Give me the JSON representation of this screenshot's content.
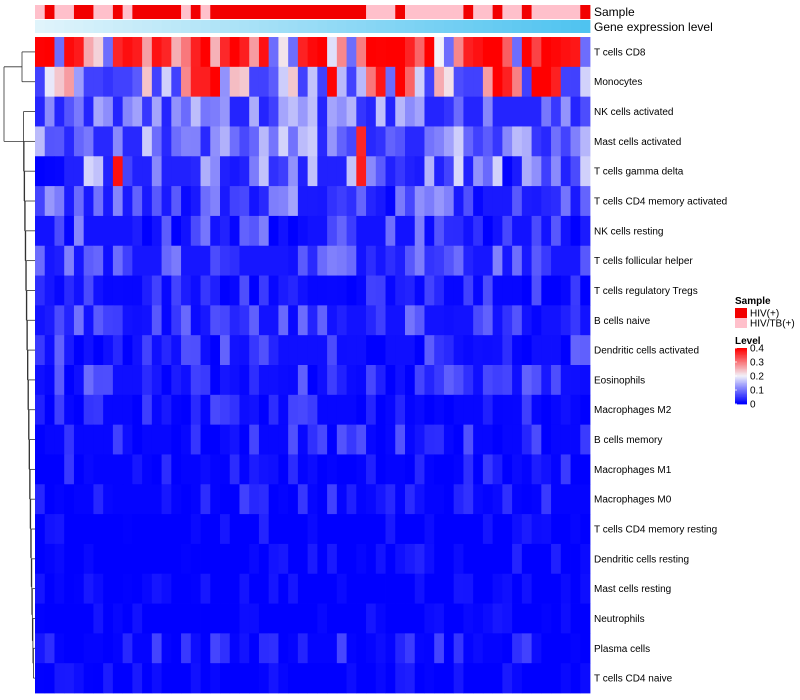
{
  "chart_data": {
    "type": "heatmap",
    "annotation_titles": [
      "Sample",
      "Gene expression level"
    ],
    "rows": [
      "T cells CD8",
      "Monocytes",
      "NK cells activated",
      "Mast cells activated",
      "T cells gamma delta",
      "T cells CD4 memory activated",
      "NK cells resting",
      "T cells follicular helper",
      "T cells regulatory  Tregs",
      "B cells naive",
      "Dendritic cells activated",
      "Eosinophils",
      "Macrophages M2",
      "B cells memory",
      "Macrophages M1",
      "Macrophages M0",
      "T cells CD4 memory resting",
      "Dendritic cells resting",
      "Mast cells resting",
      "Neutrophils",
      "Plasma cells",
      "T cells CD4 naive"
    ],
    "sample_groups": [
      "HIV/TB(+)",
      "HIV(+)",
      "HIV/TB(+)",
      "HIV/TB(+)",
      "HIV(+)",
      "HIV(+)",
      "HIV/TB(+)",
      "HIV/TB(+)",
      "HIV(+)",
      "HIV/TB(+)",
      "HIV(+)",
      "HIV(+)",
      "HIV(+)",
      "HIV(+)",
      "HIV(+)",
      "HIV/TB(+)",
      "HIV(+)",
      "HIV/TB(+)",
      "HIV(+)",
      "HIV(+)",
      "HIV(+)",
      "HIV(+)",
      "HIV(+)",
      "HIV(+)",
      "HIV(+)",
      "HIV(+)",
      "HIV(+)",
      "HIV(+)",
      "HIV(+)",
      "HIV(+)",
      "HIV(+)",
      "HIV(+)",
      "HIV(+)",
      "HIV(+)",
      "HIV/TB(+)",
      "HIV/TB(+)",
      "HIV/TB(+)",
      "HIV(+)",
      "HIV/TB(+)",
      "HIV/TB(+)",
      "HIV/TB(+)",
      "HIV/TB(+)",
      "HIV/TB(+)",
      "HIV/TB(+)",
      "HIV(+)",
      "HIV/TB(+)",
      "HIV/TB(+)",
      "HIV(+)",
      "HIV/TB(+)",
      "HIV/TB(+)",
      "HIV(+)",
      "HIV/TB(+)",
      "HIV/TB(+)",
      "HIV/TB(+)",
      "HIV/TB(+)",
      "HIV/TB(+)",
      "HIV(+)"
    ],
    "expression_level": {
      "min": 0,
      "max": 1,
      "low_color": "#e0f4fb",
      "high_color": "#4fc3f0"
    },
    "row_patterns": [
      {
        "name": "T cells CD8",
        "base": 0.3,
        "amp": 0.12
      },
      {
        "name": "Monocytes",
        "base": 0.18,
        "amp": 0.14
      },
      {
        "name": "NK cells activated",
        "base": 0.1,
        "amp": 0.06
      },
      {
        "name": "Mast cells activated",
        "base": 0.11,
        "amp": 0.07
      },
      {
        "name": "T cells gamma delta",
        "base": 0.09,
        "amp": 0.09
      },
      {
        "name": "T cells CD4 memory activated",
        "base": 0.07,
        "amp": 0.07
      },
      {
        "name": "NK cells resting",
        "base": 0.05,
        "amp": 0.07
      },
      {
        "name": "T cells follicular helper",
        "base": 0.06,
        "amp": 0.05
      },
      {
        "name": "T cells regulatory  Tregs",
        "base": 0.02,
        "amp": 0.05
      },
      {
        "name": "B cells naive",
        "base": 0.05,
        "amp": 0.05
      },
      {
        "name": "Dendritic cells activated",
        "base": 0.04,
        "amp": 0.05
      },
      {
        "name": "Eosinophils",
        "base": 0.04,
        "amp": 0.05
      },
      {
        "name": "Macrophages M2",
        "base": 0.02,
        "amp": 0.05
      },
      {
        "name": "B cells memory",
        "base": 0.02,
        "amp": 0.05
      },
      {
        "name": "Macrophages M1",
        "base": 0.01,
        "amp": 0.04
      },
      {
        "name": "Macrophages M0",
        "base": 0.01,
        "amp": 0.05
      },
      {
        "name": "T cells CD4 memory resting",
        "base": 0.0,
        "amp": 0.03
      },
      {
        "name": "Dendritic cells resting",
        "base": 0.0,
        "amp": 0.03
      },
      {
        "name": "Mast cells resting",
        "base": 0.0,
        "amp": 0.02
      },
      {
        "name": "Neutrophils",
        "base": 0.0,
        "amp": 0.02
      },
      {
        "name": "Plasma cells",
        "base": 0.01,
        "amp": 0.05
      },
      {
        "name": "T cells CD4 naive",
        "base": 0.0,
        "amp": 0.03
      }
    ],
    "hot_cells": [
      {
        "row": 0,
        "cols": [
          0,
          9,
          10,
          12,
          13,
          16,
          17,
          19,
          20,
          21,
          23,
          27,
          28,
          29,
          34,
          35,
          36,
          37,
          38,
          40,
          44,
          45,
          46,
          47,
          50,
          52,
          53,
          54,
          55
        ]
      },
      {
        "row": 1,
        "cols": [
          16,
          17,
          18,
          30,
          35,
          37,
          47,
          48,
          51,
          52,
          53
        ]
      },
      {
        "row": 4,
        "cols": [
          8,
          33
        ]
      },
      {
        "row": 3,
        "cols": [
          33
        ]
      }
    ],
    "legend_sample": {
      "title": "Sample",
      "entries": [
        {
          "label": "HIV(+)",
          "color": "#f20000"
        },
        {
          "label": "HIV/TB(+)",
          "color": "#ffc0cb"
        }
      ]
    },
    "legend_level": {
      "title": "Level",
      "ticks": [
        0.4,
        0.3,
        0.2,
        0.1,
        0
      ],
      "tick_labels": [
        "0.4",
        "0.3",
        "0.2",
        "0.1",
        "0"
      ],
      "range": [
        0,
        0.4
      ],
      "colors": {
        "low": "#0000ff",
        "mid": "#f2f2fa",
        "high": "#ff0000"
      }
    }
  }
}
